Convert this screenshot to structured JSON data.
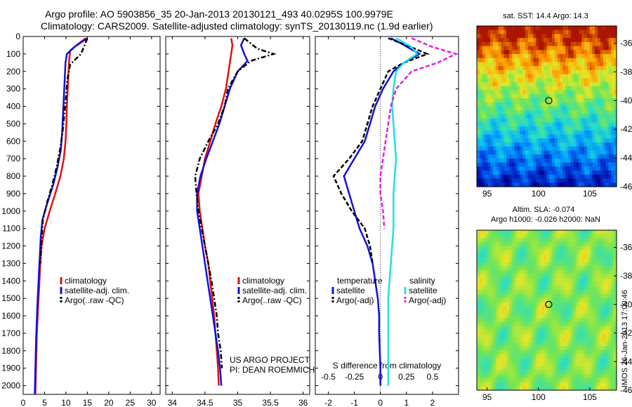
{
  "header": {
    "title_line1": "Argo profile: AO 5903856_35 20-Jan-2013 20130121_493 40.0295S 100.9979E",
    "title_line2": "Climatology: CARS2009. Satellite-adjusted climatology: synTS_20130119.nc (1.9d earlier)"
  },
  "colors": {
    "climatology": "#e01010",
    "satellite": "#1010e0",
    "argo": "#000000",
    "salinity_satellite": "#20e0e0",
    "salinity_argo": "#e020e0"
  },
  "chart_data": [
    {
      "type": "line",
      "id": "temperature",
      "xlabel": "temperature (deg C)",
      "xlim": [
        0,
        32
      ],
      "xticks": [
        0,
        5,
        10,
        15,
        20,
        25,
        30
      ],
      "ylim": [
        2050,
        0
      ],
      "yticks": [
        0,
        100,
        200,
        300,
        400,
        500,
        600,
        700,
        800,
        900,
        1000,
        1100,
        1200,
        1300,
        1400,
        1500,
        1600,
        1700,
        1800,
        1900,
        2000
      ],
      "legend": [
        "climatology",
        "satellite-adj. clim.",
        "Argo(..raw -QC)"
      ],
      "series": [
        {
          "name": "climatology",
          "x": [
            14.6,
            13,
            11,
            10.8,
            10.6,
            10.4,
            10.2,
            10.1,
            9.9,
            9.5,
            8.7,
            7.5,
            6.2,
            5.0,
            4.3,
            4.0,
            3.8,
            3.6,
            3.4,
            3.2,
            3.1,
            3.0,
            2.9,
            2.85
          ],
          "y": [
            10,
            40,
            80,
            120,
            200,
            300,
            400,
            500,
            600,
            700,
            800,
            900,
            1000,
            1100,
            1200,
            1300,
            1400,
            1500,
            1600,
            1700,
            1800,
            1900,
            2000,
            2050
          ]
        },
        {
          "name": "satellite-adj. clim.",
          "x": [
            15,
            12,
            10.2,
            9.9,
            9.7,
            9.5,
            9.3,
            9.1,
            8.8,
            8.0,
            7.0,
            5.7,
            4.5,
            4.1,
            3.9,
            3.7,
            3.5,
            3.3,
            3.15,
            3.0,
            2.9,
            2.8,
            2.75,
            2.7
          ],
          "y": [
            10,
            60,
            100,
            150,
            250,
            350,
            450,
            550,
            650,
            750,
            850,
            950,
            1050,
            1150,
            1250,
            1350,
            1450,
            1550,
            1650,
            1750,
            1850,
            1950,
            2000,
            2050
          ]
        },
        {
          "name": "Argo(..raw -QC)",
          "x": [
            15,
            14.2,
            13.5,
            11,
            10.3,
            10.0,
            9.6,
            9.2,
            8.6,
            7.8,
            6.8,
            5.6,
            4.6,
            4.2,
            4.0
          ],
          "y": [
            10,
            60,
            100,
            160,
            250,
            350,
            450,
            550,
            650,
            750,
            850,
            950,
            1050,
            1200,
            1300
          ]
        }
      ]
    },
    {
      "type": "line",
      "id": "salinity",
      "xlabel": "salinity",
      "xlim": [
        33.9,
        36.1
      ],
      "xticks": [
        34,
        34.5,
        35,
        35.5,
        36
      ],
      "ylim": [
        2050,
        0
      ],
      "legend": [
        "climatology",
        "satellite-adj. clim.",
        "Argo(..raw -QC)"
      ],
      "annotation": [
        "US ARGO PROJECT",
        "PI: DEAN ROEMMICH"
      ],
      "series": [
        {
          "name": "climatology",
          "x": [
            34.9,
            34.92,
            34.9,
            34.88,
            34.86,
            34.82,
            34.75,
            34.66,
            34.58,
            34.5,
            34.45,
            34.4,
            34.42,
            34.46,
            34.5,
            34.55,
            34.58,
            34.61,
            34.64,
            34.66,
            34.68,
            34.7,
            34.71
          ],
          "y": [
            10,
            50,
            100,
            150,
            200,
            300,
            400,
            500,
            600,
            700,
            800,
            900,
            1000,
            1100,
            1200,
            1300,
            1400,
            1500,
            1600,
            1700,
            1800,
            1900,
            2000
          ]
        },
        {
          "name": "satellite-adj. clim.",
          "x": [
            35.1,
            35.05,
            35.1,
            35.15,
            35.0,
            34.88,
            34.8,
            34.72,
            34.62,
            34.52,
            34.43,
            34.38,
            34.38,
            34.42,
            34.46,
            34.5,
            34.54,
            34.58,
            34.62,
            34.66,
            34.7,
            34.73,
            34.75
          ],
          "y": [
            10,
            50,
            100,
            140,
            200,
            300,
            400,
            500,
            600,
            700,
            800,
            900,
            1000,
            1100,
            1200,
            1300,
            1400,
            1500,
            1600,
            1700,
            1800,
            1900,
            2000
          ]
        },
        {
          "name": "Argo(..raw -QC)",
          "x": [
            35.1,
            35.3,
            35.55,
            35.2,
            35.0,
            34.85,
            34.8,
            34.7,
            34.55,
            34.42,
            34.35,
            34.37,
            34.4,
            34.45,
            34.5,
            34.55,
            34.6,
            34.64,
            34.68,
            34.7,
            34.74,
            34.76
          ],
          "y": [
            10,
            70,
            100,
            140,
            200,
            300,
            400,
            500,
            600,
            700,
            800,
            900,
            1000,
            1100,
            1200,
            1300,
            1400,
            1500,
            1600,
            1700,
            1800,
            1900
          ]
        }
      ]
    },
    {
      "type": "line",
      "id": "differences",
      "xlabel": "T difference from climatology",
      "xlabel_top": "S difference from climatology",
      "xlim": [
        -2.5,
        3
      ],
      "xticks": [
        -2,
        -1,
        0,
        1,
        2
      ],
      "xticks_top": [
        {
          "label": "-0.5",
          "t": -2
        },
        {
          "label": "-0.25",
          "t": -1
        },
        {
          "label": "0",
          "t": 0
        },
        {
          "label": "0.25",
          "t": 1
        },
        {
          "label": "0.5",
          "t": 2
        }
      ],
      "ylim": [
        2050,
        0
      ],
      "legend_titles": [
        "temperature",
        "salinity"
      ],
      "legend": [
        "satellite",
        "Argo(-adj)",
        "satellite",
        "Argo(-adj)"
      ],
      "series": [
        {
          "name": "satellite",
          "group": "temperature",
          "x": [
            0.4,
            0.8,
            1.5,
            0.9,
            0.5,
            0.1,
            -0.2,
            -0.4,
            -0.6,
            -1.0,
            -1.4,
            -1.2,
            -1.0,
            -0.8,
            -0.5,
            -0.3,
            -0.2,
            -0.1,
            -0.05,
            -0.05,
            0,
            0
          ],
          "y": [
            10,
            40,
            100,
            150,
            200,
            300,
            400,
            500,
            600,
            700,
            800,
            900,
            1000,
            1100,
            1200,
            1300,
            1400,
            1500,
            1600,
            1700,
            1900,
            2000
          ]
        },
        {
          "name": "Argo(-adj)",
          "group": "temperature",
          "x": [
            0.3,
            1.0,
            1.8,
            0.9,
            0.3,
            0.0,
            -0.3,
            -0.5,
            -0.7,
            -1.2,
            -1.8,
            -1.5,
            -1.1,
            -0.6,
            -0.4,
            -0.3
          ],
          "y": [
            10,
            50,
            100,
            150,
            200,
            300,
            400,
            500,
            600,
            700,
            800,
            900,
            1000,
            1100,
            1200,
            1300
          ]
        },
        {
          "name": "satellite",
          "group": "salinity",
          "x": [
            0.6,
            1.2,
            1.4,
            0.9,
            0.6,
            0.5,
            0.45,
            0.5,
            0.55,
            0.6,
            0.55,
            0.5,
            0.5,
            0.5,
            0.45,
            0.4,
            0.35,
            0.3,
            0.3,
            0.3,
            0.3
          ],
          "y": [
            10,
            60,
            100,
            150,
            200,
            300,
            400,
            500,
            600,
            700,
            800,
            900,
            1000,
            1100,
            1200,
            1300,
            1400,
            1500,
            1600,
            1800,
            2000
          ]
        },
        {
          "name": "Argo(-adj)",
          "group": "salinity",
          "x": [
            1.2,
            2.0,
            2.9,
            2.2,
            1.2,
            0.6,
            0.4,
            0.3,
            0.2,
            0.1,
            0.0,
            0.0,
            0.1,
            0.15
          ],
          "y": [
            10,
            60,
            100,
            150,
            200,
            300,
            400,
            500,
            600,
            700,
            800,
            900,
            1000,
            1100
          ]
        }
      ]
    },
    {
      "type": "heatmap",
      "id": "sst_map",
      "title": "sat. SST: 14.4 Argo: 14.3",
      "xlim": [
        94,
        107.6
      ],
      "ylim": [
        -46,
        -34.8
      ],
      "xticks": [
        95,
        100,
        105
      ],
      "yticks": [
        -36,
        -38,
        -40,
        -42,
        -44,
        -46
      ],
      "marker": {
        "lon": 101,
        "lat": -40
      }
    },
    {
      "type": "heatmap",
      "id": "sla_map",
      "title": "Altim. SLA: -0.074",
      "subtitle": "Argo h1000: -0.026 h2000: NaN",
      "xlim": [
        94,
        107.6
      ],
      "ylim": [
        -46,
        -34.8
      ],
      "xticks": [
        95,
        100,
        105
      ],
      "yticks": [
        -36,
        -38,
        -40,
        -42,
        -44,
        -46
      ],
      "marker": {
        "lon": 101,
        "lat": -40
      }
    }
  ],
  "side_note": "IMOS 26-Jan-2013 17:00:46"
}
